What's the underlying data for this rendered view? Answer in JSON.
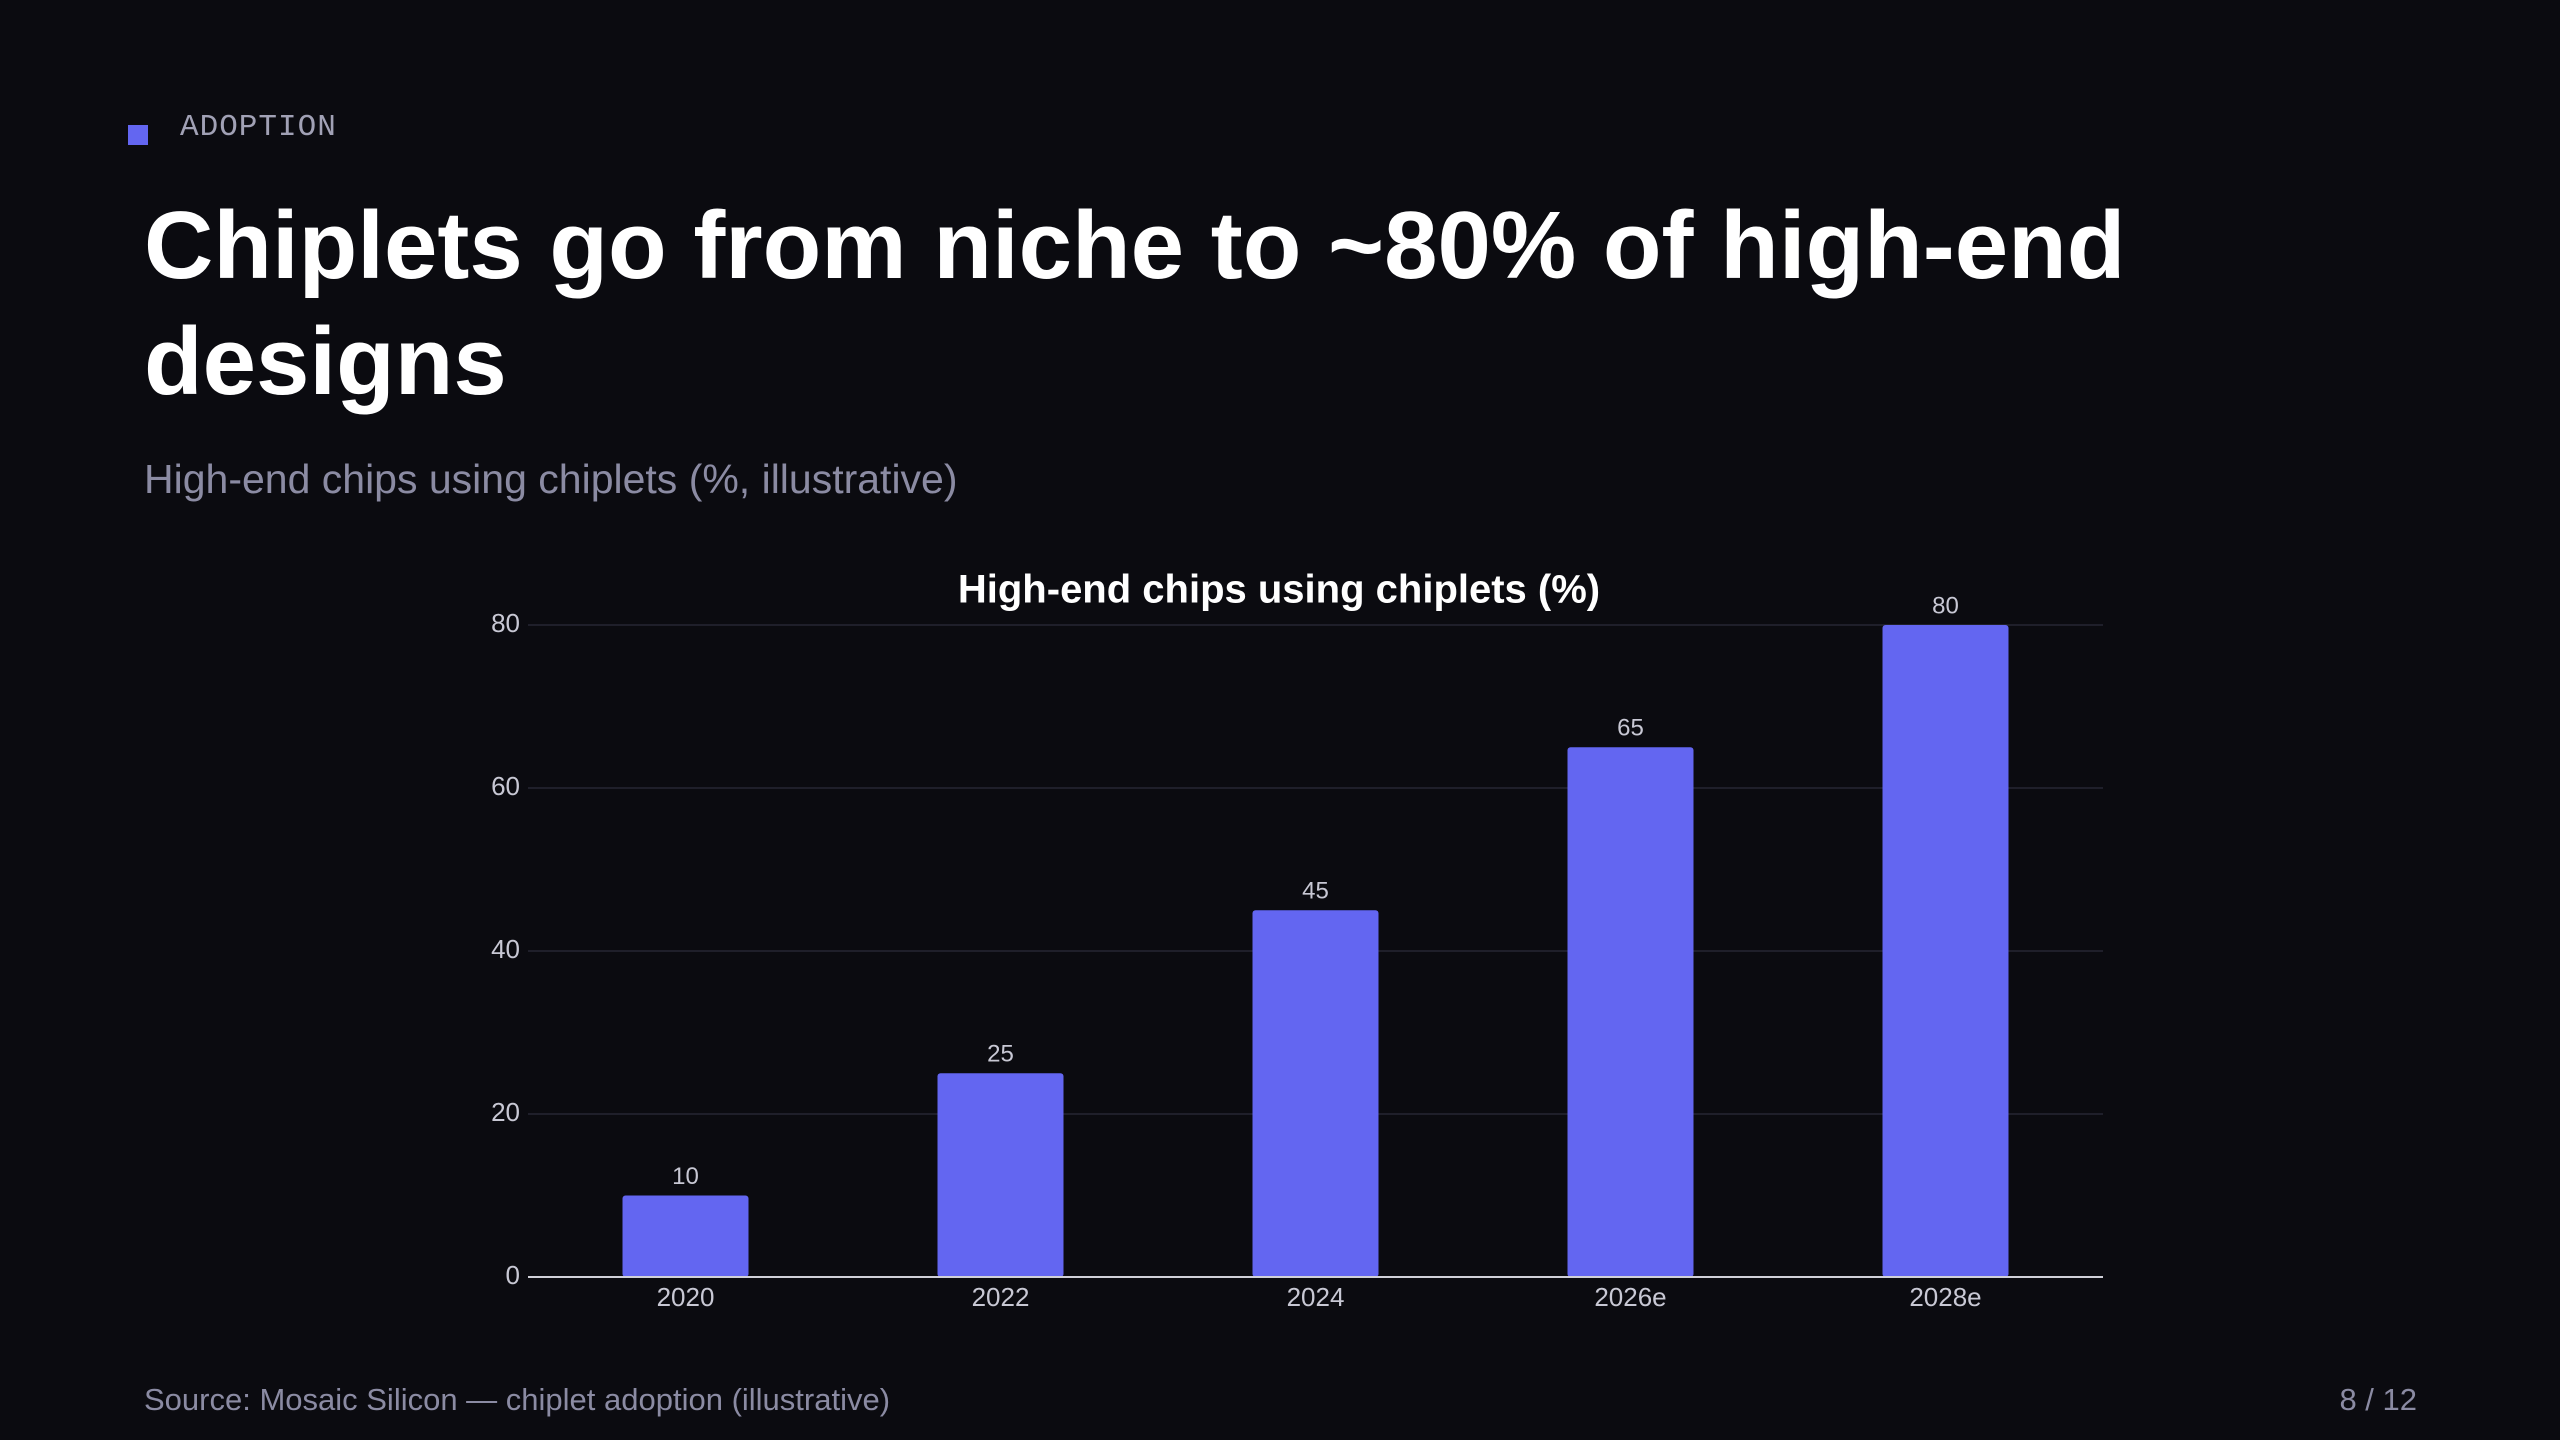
{
  "kicker": "ADOPTION",
  "title": "Chiplets go from niche to ~80% of high-end designs",
  "subtitle": "High-end chips using chiplets (%, illustrative)",
  "chart_data": {
    "type": "bar",
    "title": "High-end chips using chiplets (%)",
    "categories": [
      "2020",
      "2022",
      "2024",
      "2026e",
      "2028e"
    ],
    "values": [
      10,
      25,
      45,
      65,
      80
    ],
    "color": "#6366f1",
    "ylim": [
      0,
      80
    ],
    "yticks": [
      0,
      20,
      40,
      60,
      80
    ],
    "grid": true
  },
  "footer": {
    "source": "Source: Mosaic Silicon — chiplet adoption (illustrative)",
    "page": "8 / 12"
  }
}
